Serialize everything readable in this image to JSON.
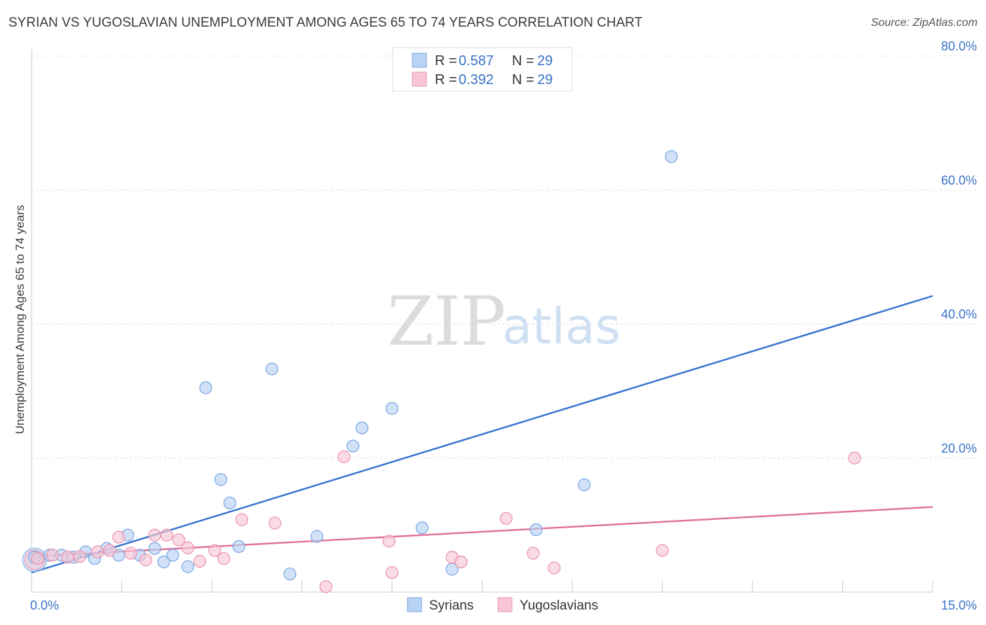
{
  "header": {
    "title": "SYRIAN VS YUGOSLAVIAN UNEMPLOYMENT AMONG AGES 65 TO 74 YEARS CORRELATION CHART",
    "source": "Source: ZipAtlas.com"
  },
  "watermark": {
    "zip": "ZIP",
    "atlas": "atlas"
  },
  "legend": {
    "r_label": "R = ",
    "n_label": "N = ",
    "syrians": {
      "r": "0.587",
      "n": "29"
    },
    "yugoslavians": {
      "r": "0.392",
      "n": "29"
    }
  },
  "colors": {
    "syrians_fill": "#b8d3f5",
    "syrians_stroke": "#7aa7e0",
    "syrians_line": "#3573d0",
    "yugoslavians_fill": "#f8c6d6",
    "yugoslavians_stroke": "#ec93b1",
    "yugoslavians_line": "#e0709a",
    "tick_text": "#3a73c8",
    "grid": "#dddddd"
  },
  "chart_data": {
    "type": "scatter",
    "title": "SYRIAN VS YUGOSLAVIAN UNEMPLOYMENT AMONG AGES 65 TO 74 YEARS CORRELATION CHART",
    "xlabel": "",
    "ylabel": "Unemployment Among Ages 65 to 74 years",
    "xlim": [
      0,
      15
    ],
    "ylim": [
      0,
      80
    ],
    "x_tick_labels": [
      "0.0%",
      "15.0%"
    ],
    "y_ticks": [
      20,
      40,
      60,
      80
    ],
    "y_tick_labels": [
      "20.0%",
      "40.0%",
      "60.0%",
      "80.0%"
    ],
    "grid": true,
    "legend_position": "top-center",
    "series": [
      {
        "name": "Syrians",
        "points": [
          [
            0.05,
            5.2
          ],
          [
            0.3,
            5.5
          ],
          [
            0.5,
            5.5
          ],
          [
            0.7,
            5.2
          ],
          [
            0.9,
            6.0
          ],
          [
            1.05,
            5.0
          ],
          [
            1.25,
            6.5
          ],
          [
            1.45,
            5.5
          ],
          [
            1.6,
            8.5
          ],
          [
            1.8,
            5.5
          ],
          [
            2.05,
            6.5
          ],
          [
            2.2,
            4.5
          ],
          [
            2.35,
            5.5
          ],
          [
            2.6,
            3.8
          ],
          [
            2.9,
            30.5
          ],
          [
            3.15,
            16.8
          ],
          [
            3.3,
            13.3
          ],
          [
            3.45,
            6.8
          ],
          [
            4.0,
            33.3
          ],
          [
            4.3,
            2.7
          ],
          [
            4.75,
            8.3
          ],
          [
            5.35,
            21.8
          ],
          [
            5.5,
            24.5
          ],
          [
            6.0,
            27.4
          ],
          [
            6.5,
            9.6
          ],
          [
            7.0,
            3.4
          ],
          [
            8.4,
            9.3
          ],
          [
            9.2,
            16.0
          ],
          [
            10.65,
            65.0
          ]
        ],
        "trend": {
          "x": [
            0,
            15
          ],
          "y": [
            2.9,
            44.2
          ]
        }
      },
      {
        "name": "Yugoslavians",
        "points": [
          [
            0.1,
            5.0
          ],
          [
            0.35,
            5.5
          ],
          [
            0.6,
            5.2
          ],
          [
            0.8,
            5.3
          ],
          [
            1.1,
            6.0
          ],
          [
            1.3,
            6.2
          ],
          [
            1.45,
            8.2
          ],
          [
            1.65,
            5.8
          ],
          [
            1.9,
            4.8
          ],
          [
            2.05,
            8.5
          ],
          [
            2.25,
            8.5
          ],
          [
            2.45,
            7.8
          ],
          [
            2.6,
            6.6
          ],
          [
            2.8,
            4.6
          ],
          [
            3.05,
            6.2
          ],
          [
            3.2,
            5.0
          ],
          [
            3.5,
            10.8
          ],
          [
            4.05,
            10.3
          ],
          [
            4.9,
            0.8
          ],
          [
            5.2,
            20.2
          ],
          [
            5.95,
            7.6
          ],
          [
            6.0,
            2.9
          ],
          [
            7.0,
            5.2
          ],
          [
            7.15,
            4.5
          ],
          [
            7.9,
            11.0
          ],
          [
            8.35,
            5.8
          ],
          [
            8.7,
            3.6
          ],
          [
            10.5,
            6.2
          ],
          [
            13.7,
            20.0
          ]
        ],
        "trend": {
          "x": [
            0,
            15
          ],
          "y": [
            5.3,
            12.7
          ]
        }
      }
    ]
  },
  "bottom_legend": {
    "syrians": "Syrians",
    "yugoslavians": "Yugoslavians"
  }
}
